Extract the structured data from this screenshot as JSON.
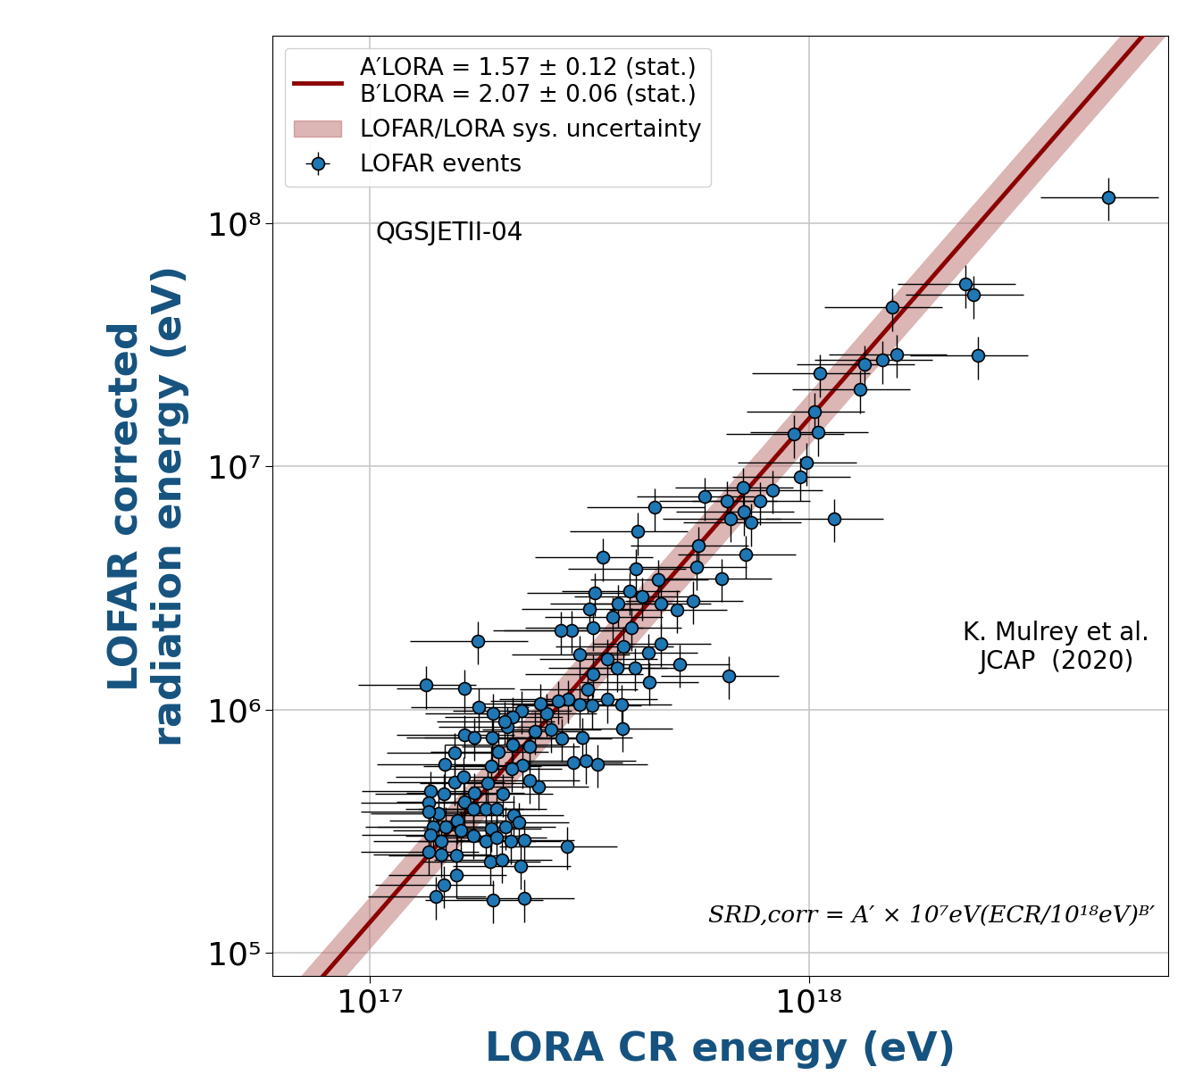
{
  "chart_data": {
    "type": "scatter",
    "xlabel": "LORA CR energy (eV)",
    "ylabel": "LOFAR corrected\nradiation energy (eV)",
    "log": true,
    "grid": true,
    "legend": "upper left",
    "xlim": [
      6e+16,
      6.6e+18
    ],
    "ylim": [
      80000.0,
      590000000.0
    ],
    "xticks": [
      {
        "value": 1e+17,
        "label": "10¹⁷"
      },
      {
        "value": 1e+18,
        "label": "10¹⁸"
      }
    ],
    "yticks": [
      {
        "value": 100000.0,
        "label": "10⁵"
      },
      {
        "value": 1000000.0,
        "label": "10⁶"
      },
      {
        "value": 10000000.0,
        "label": "10⁷"
      },
      {
        "value": 100000000.0,
        "label": "10⁸"
      }
    ],
    "annotations": [
      "QGSJETII-04",
      "K. Mulrey et al.\nJCAP  (2020)",
      "SRD,corr = A′ × 10⁷eV(ECR/10¹⁸eV)ᴮ′"
    ],
    "fit": {
      "name": "A′LORA = 1.57 ± 0.12 (stat.)\nB′LORA = 2.07 ± 0.06 (stat.)",
      "color": "#8b0000",
      "A": 1.57,
      "B": 2.07,
      "scale_y": 10000000.0,
      "scale_x": 1e+18
    },
    "band": {
      "name": "LOFAR/LORA sys. uncertainty",
      "color": "#b35c5c",
      "lower_factor": 0.78,
      "upper_factor": 1.28
    },
    "series": [
      {
        "name": "LOFAR events",
        "color": "#1f77b4",
        "marker": "o",
        "x_err_fraction": 0.3,
        "y_err_fraction": 0.2,
        "x": [
          4.83e+18,
          2.28e+18,
          2.37e+18,
          2.43e+18,
          1.55e+18,
          1.59e+18,
          1.47e+18,
          1.34e+18,
          1.31e+18,
          1.06e+18,
          1.03e+18,
          1.05e+18,
          9.25e+17,
          9.86e+17,
          9.55e+17,
          1.14e+18,
          8.26e+17,
          7.73e+17,
          7.08e+17,
          6.51e+17,
          6.63e+17,
          7.11e+17,
          7.38e+17,
          7.18e+17,
          5.79e+17,
          5.6e+17,
          5.55e+17,
          6.32e+17,
          6.56e+17,
          4.46e+17,
          4.08e+17,
          3.4e+17,
          4.54e+17,
          5.08e+17,
          5.45e+17,
          5.01e+17,
          4.61e+17,
          4.18e+17,
          3.91e+17,
          3.68e+17,
          3.58e+17,
          3.26e+17,
          3.17e+17,
          3.23e+17,
          3.94e+17,
          4.61e+17,
          4.3e+17,
          4.02e+17,
          3.78e+17,
          3.47e+17,
          3.65e+17,
          4.32e+17,
          2.88e+17,
          2.72e+17,
          3.23e+17,
          3.14e+17,
          3.2e+17,
          3.47e+17,
          3.75e+17,
          3.77e+17,
          3.01e+17,
          2.82e+17,
          2.69e+17,
          2.52e+17,
          2.44e+17,
          2.21e+17,
          2.11e+17,
          2.74e+17,
          3.04e+17,
          3.3e+17,
          3.11e+17,
          2.9e+17,
          2.58e+17,
          2.38e+17,
          2.31e+17,
          2.05e+17,
          2.11e+17,
          1.96e+17,
          2.23e+17,
          2.1e+17,
          1.9e+17,
          1.77e+17,
          1.76e+17,
          1.64e+17,
          1.34e+17,
          1.91e+17,
          1.64e+17,
          1.73e+17,
          1.56e+17,
          1.48e+17,
          1.89e+17,
          1.85e+17,
          1.73e+17,
          1.64e+17,
          1.56e+17,
          1.47e+17,
          1.37e+17,
          1.36e+17,
          1.43e+17,
          1.36e+17,
          1.58e+17,
          1.72e+17,
          1.84e+17,
          1.94e+17,
          2.01e+17,
          2.12e+17,
          2.04e+17,
          1.89e+17,
          1.72e+17,
          1.61e+17,
          1.49e+17,
          1.39e+17,
          1.45e+17,
          1.37e+17,
          1.36e+17,
          1.45e+17,
          1.57e+17,
          1.84e+17,
          1.94e+17,
          2.09e+17,
          2.25e+17,
          2.18e+17,
          1.88e+17,
          2e+17,
          2.2e+17,
          2.81e+17,
          1.57e+17,
          1.47e+17,
          1.41e+17,
          1.91e+17,
          2.25e+17,
          2.03e+17,
          2.42e+17,
          2.31e+17,
          1.63e+17,
          3e+17,
          4.04e+17
        ],
        "values": [
          128000000.0,
          56200000.0,
          50800000.0,
          28600000.0,
          45100000.0,
          29000000.0,
          27400000.0,
          26300000.0,
          20700000.0,
          24100000.0,
          16800000.0,
          13800000.0,
          13600000.0,
          10400000.0,
          9040000.0,
          6120000.0,
          8020000.0,
          7190000.0,
          8220000.0,
          7240000.0,
          6120000.0,
          6500000.0,
          5870000.0,
          4330000.0,
          7500000.0,
          4710000.0,
          3870000.0,
          3470000.0,
          1380000.0,
          6780000.0,
          5400000.0,
          4220000.0,
          3440000.0,
          1540000.0,
          2810000.0,
          2580000.0,
          2720000.0,
          2910000.0,
          3060000.0,
          2720000.0,
          2410000.0,
          3030000.0,
          2600000.0,
          2180000.0,
          2180000.0,
          1870000.0,
          1710000.0,
          1490000.0,
          1820000.0,
          1620000.0,
          1480000.0,
          1300000.0,
          2120000.0,
          2110000.0,
          1400000.0,
          1210000.0,
          1040000.0,
          1100000.0,
          1050000.0,
          838000.0,
          1050000.0,
          1100000.0,
          1090000.0,
          967000.0,
          1060000.0,
          991000.0,
          935000.0,
          763000.0,
          769000.0,
          597000.0,
          617000.0,
          607000.0,
          830000.0,
          817000.0,
          706000.0,
          851000.0,
          719000.0,
          672000.0,
          592000.0,
          571000.0,
          769000.0,
          1020000.0,
          1920000.0,
          1220000.0,
          1260000.0,
          967000.0,
          789000.0,
          769000.0,
          667000.0,
          597000.0,
          586000.0,
          500000.0,
          455000.0,
          418000.0,
          504000.0,
          451000.0,
          462000.0,
          415000.0,
          375000.0,
          381000.0,
          350000.0,
          391000.0,
          391000.0,
          391000.0,
          451000.0,
          368000.0,
          330000.0,
          324000.0,
          303000.0,
          319000.0,
          330000.0,
          330000.0,
          288000.0,
          306000.0,
          260000.0,
          254000.0,
          252000.0,
          288000.0,
          298000.0,
          288000.0,
          290000.0,
          344000.0,
          237000.0,
          241000.0,
          227000.0,
          274000.0,
          209000.0,
          190000.0,
          171000.0,
          165000.0,
          167000.0,
          896000.0,
          483000.0,
          513000.0,
          530000.0,
          1680000.0,
          3810000.0
        ]
      }
    ]
  }
}
